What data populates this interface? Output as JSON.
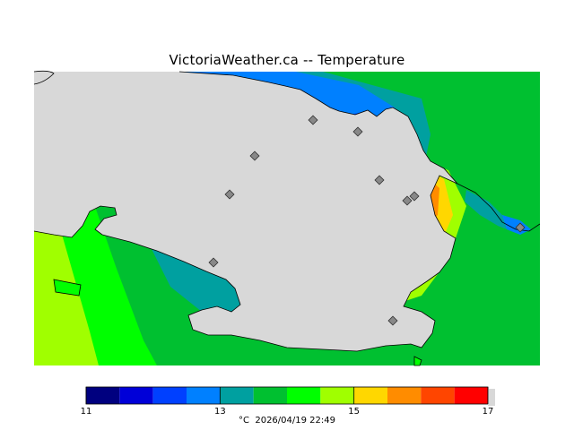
{
  "title": "VictoriaWeather.ca -- Temperature",
  "caption": {
    "unit": "°C",
    "datetime": "2026/04/19 22:49"
  },
  "legend": {
    "ticks": [
      "11",
      "13",
      "15",
      "17"
    ],
    "range": [
      11,
      17
    ],
    "bins": [
      {
        "from": 11.0,
        "to": 11.5,
        "color": "#00007f"
      },
      {
        "from": 11.5,
        "to": 12.0,
        "color": "#0000d8"
      },
      {
        "from": 12.0,
        "to": 12.5,
        "color": "#0040ff"
      },
      {
        "from": 12.5,
        "to": 13.0,
        "color": "#0080ff"
      },
      {
        "from": 13.0,
        "to": 13.5,
        "color": "#00a0a0"
      },
      {
        "from": 13.5,
        "to": 14.0,
        "color": "#00c030"
      },
      {
        "from": 14.0,
        "to": 14.5,
        "color": "#00ff00"
      },
      {
        "from": 14.5,
        "to": 15.0,
        "color": "#a0ff00"
      },
      {
        "from": 15.0,
        "to": 15.5,
        "color": "#ffd700"
      },
      {
        "from": 15.5,
        "to": 16.0,
        "color": "#ff8c00"
      },
      {
        "from": 16.0,
        "to": 16.5,
        "color": "#ff4500"
      },
      {
        "from": 16.5,
        "to": 17.0,
        "color": "#ff0000"
      }
    ]
  },
  "colors": {
    "water": "#d8d8d8",
    "coast": "#000000",
    "station": "#888888"
  },
  "stations_count": 10
}
